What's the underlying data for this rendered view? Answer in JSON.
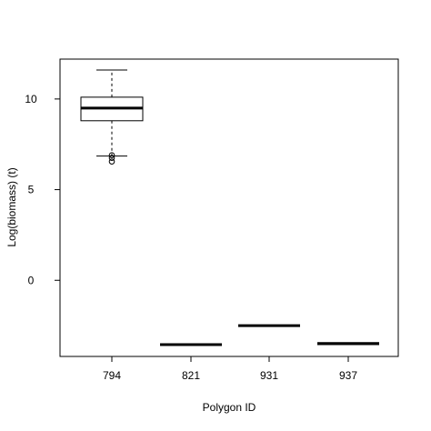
{
  "chart_data": {
    "type": "boxplot",
    "title": "",
    "xlabel": "Polygon ID",
    "ylabel": "Log(biomass) (t)",
    "categories": [
      "794",
      "821",
      "931",
      "937"
    ],
    "yticks": [
      0,
      5,
      10
    ],
    "ytick_labels": [
      "0",
      "5",
      "10"
    ],
    "ylim": [
      -4.2,
      12.2
    ],
    "grid": false,
    "boxes": [
      {
        "category": "794",
        "whisker_low": 6.85,
        "q1": 8.8,
        "median": 9.5,
        "q3": 10.1,
        "whisker_high": 11.6,
        "outliers": [
          6.9,
          6.75,
          6.55
        ]
      },
      {
        "category": "821",
        "whisker_low": -3.55,
        "q1": -3.55,
        "median": -3.55,
        "q3": -3.55,
        "whisker_high": -3.55,
        "outliers": []
      },
      {
        "category": "931",
        "whisker_low": -2.5,
        "q1": -2.5,
        "median": -2.5,
        "q3": -2.5,
        "whisker_high": -2.5,
        "outliers": []
      },
      {
        "category": "937",
        "whisker_low": -3.5,
        "q1": -3.5,
        "median": -3.5,
        "q3": -3.45,
        "whisker_high": -3.45,
        "outliers": []
      }
    ]
  }
}
